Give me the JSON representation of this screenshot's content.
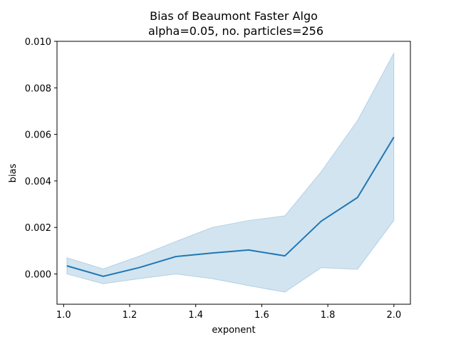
{
  "chart_data": {
    "type": "line",
    "title_line1": "Bias of Beaumont Faster Algo",
    "title_line2": "alpha=0.05, no. particles=256",
    "xlabel": "exponent",
    "ylabel": "bias",
    "xlim": [
      0.98,
      2.05
    ],
    "ylim": [
      -0.0013,
      0.01
    ],
    "x_ticks": [
      1.0,
      1.2,
      1.4,
      1.6,
      1.8,
      2.0
    ],
    "x_tick_labels": [
      "1.0",
      "1.2",
      "1.4",
      "1.6",
      "1.8",
      "2.0"
    ],
    "y_ticks": [
      0.0,
      0.002,
      0.004,
      0.006,
      0.008,
      0.01
    ],
    "y_tick_labels": [
      "0.000",
      "0.002",
      "0.004",
      "0.006",
      "0.008",
      "0.010"
    ],
    "series": [
      {
        "x": [
          1.01,
          1.12,
          1.23,
          1.34,
          1.45,
          1.56,
          1.67,
          1.78,
          1.89,
          2.0
        ],
        "values": [
          0.00035,
          -0.0001,
          0.00028,
          0.00075,
          0.0009,
          0.00103,
          0.00078,
          0.00227,
          0.00329,
          0.00588
        ],
        "ci_lower": [
          0.0,
          -0.00042,
          -0.0002,
          0.0,
          -0.0002,
          -0.0005,
          -0.00078,
          0.00027,
          0.0002,
          0.0023
        ],
        "ci_upper": [
          0.0007,
          0.00022,
          0.00077,
          0.0014,
          0.002,
          0.0023,
          0.0025,
          0.0044,
          0.0066,
          0.0095
        ]
      }
    ],
    "colors": {
      "line": "#1f77b4",
      "band": "#1f77b4",
      "axes": "#000000"
    },
    "grid": false
  }
}
